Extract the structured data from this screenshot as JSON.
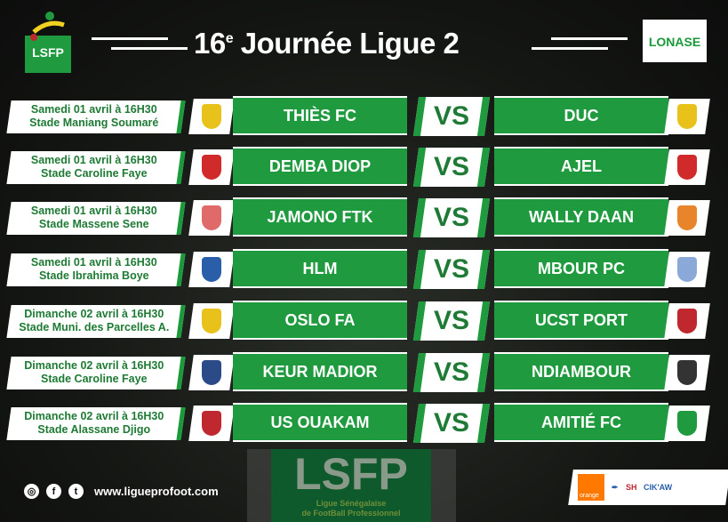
{
  "header": {
    "title_number": "16",
    "title_sup": "e",
    "title_rest": " Journée Ligue 2",
    "left_logo": "LSFP",
    "right_logo": "LONASE"
  },
  "vs_label": "VS",
  "matches": [
    {
      "date": "Samedi 01 avril à 16H30",
      "venue": "Stade Maniang Soumaré",
      "home": "THIÈS FC",
      "away": "DUC",
      "home_color": "#e8c21a",
      "away_color": "#e8c21a"
    },
    {
      "date": "Samedi 01 avril à 16H30",
      "venue": "Stade Caroline Faye",
      "home": "DEMBA DIOP",
      "away": "AJEL",
      "home_color": "#d02a2a",
      "away_color": "#d02a2a"
    },
    {
      "date": "Samedi 01 avril à 16H30",
      "venue": "Stade Massene Sene",
      "home": "JAMONO FTK",
      "away": "WALLY DAAN",
      "home_color": "#e06a6a",
      "away_color": "#e8852a"
    },
    {
      "date": "Samedi 01 avril à 16H30",
      "venue": "Stade Ibrahima Boye",
      "home": "HLM",
      "away": "MBOUR PC",
      "home_color": "#2a5ea8",
      "away_color": "#8aa8d8"
    },
    {
      "date": "Dimanche 02 avril à 16H30",
      "venue": "Stade Muni. des Parcelles A.",
      "home": "OSLO FA",
      "away": "UCST PORT",
      "home_color": "#e8c21a",
      "away_color": "#c0282f"
    },
    {
      "date": "Dimanche 02 avril à 16H30",
      "venue": "Stade Caroline Faye",
      "home": "KEUR MADIOR",
      "away": "NDIAMBOUR",
      "home_color": "#2a4a88",
      "away_color": "#333333"
    },
    {
      "date": "Dimanche 02 avril à 16H30",
      "venue": "Stade Alassane Djigo",
      "home": "US OUAKAM",
      "away": "AMITIÉ FC",
      "home_color": "#c0282f",
      "away_color": "#1f9a3e"
    }
  ],
  "footer": {
    "url": "www.ligueprofoot.com",
    "social": [
      "instagram",
      "facebook",
      "twitter"
    ],
    "watermark_title": "LSFP",
    "watermark_sub1": "Ligue Sénégalaise",
    "watermark_sub2": "de FootBall Professionnel",
    "sponsors": [
      "orange",
      "SH",
      "CIK'AW"
    ]
  }
}
